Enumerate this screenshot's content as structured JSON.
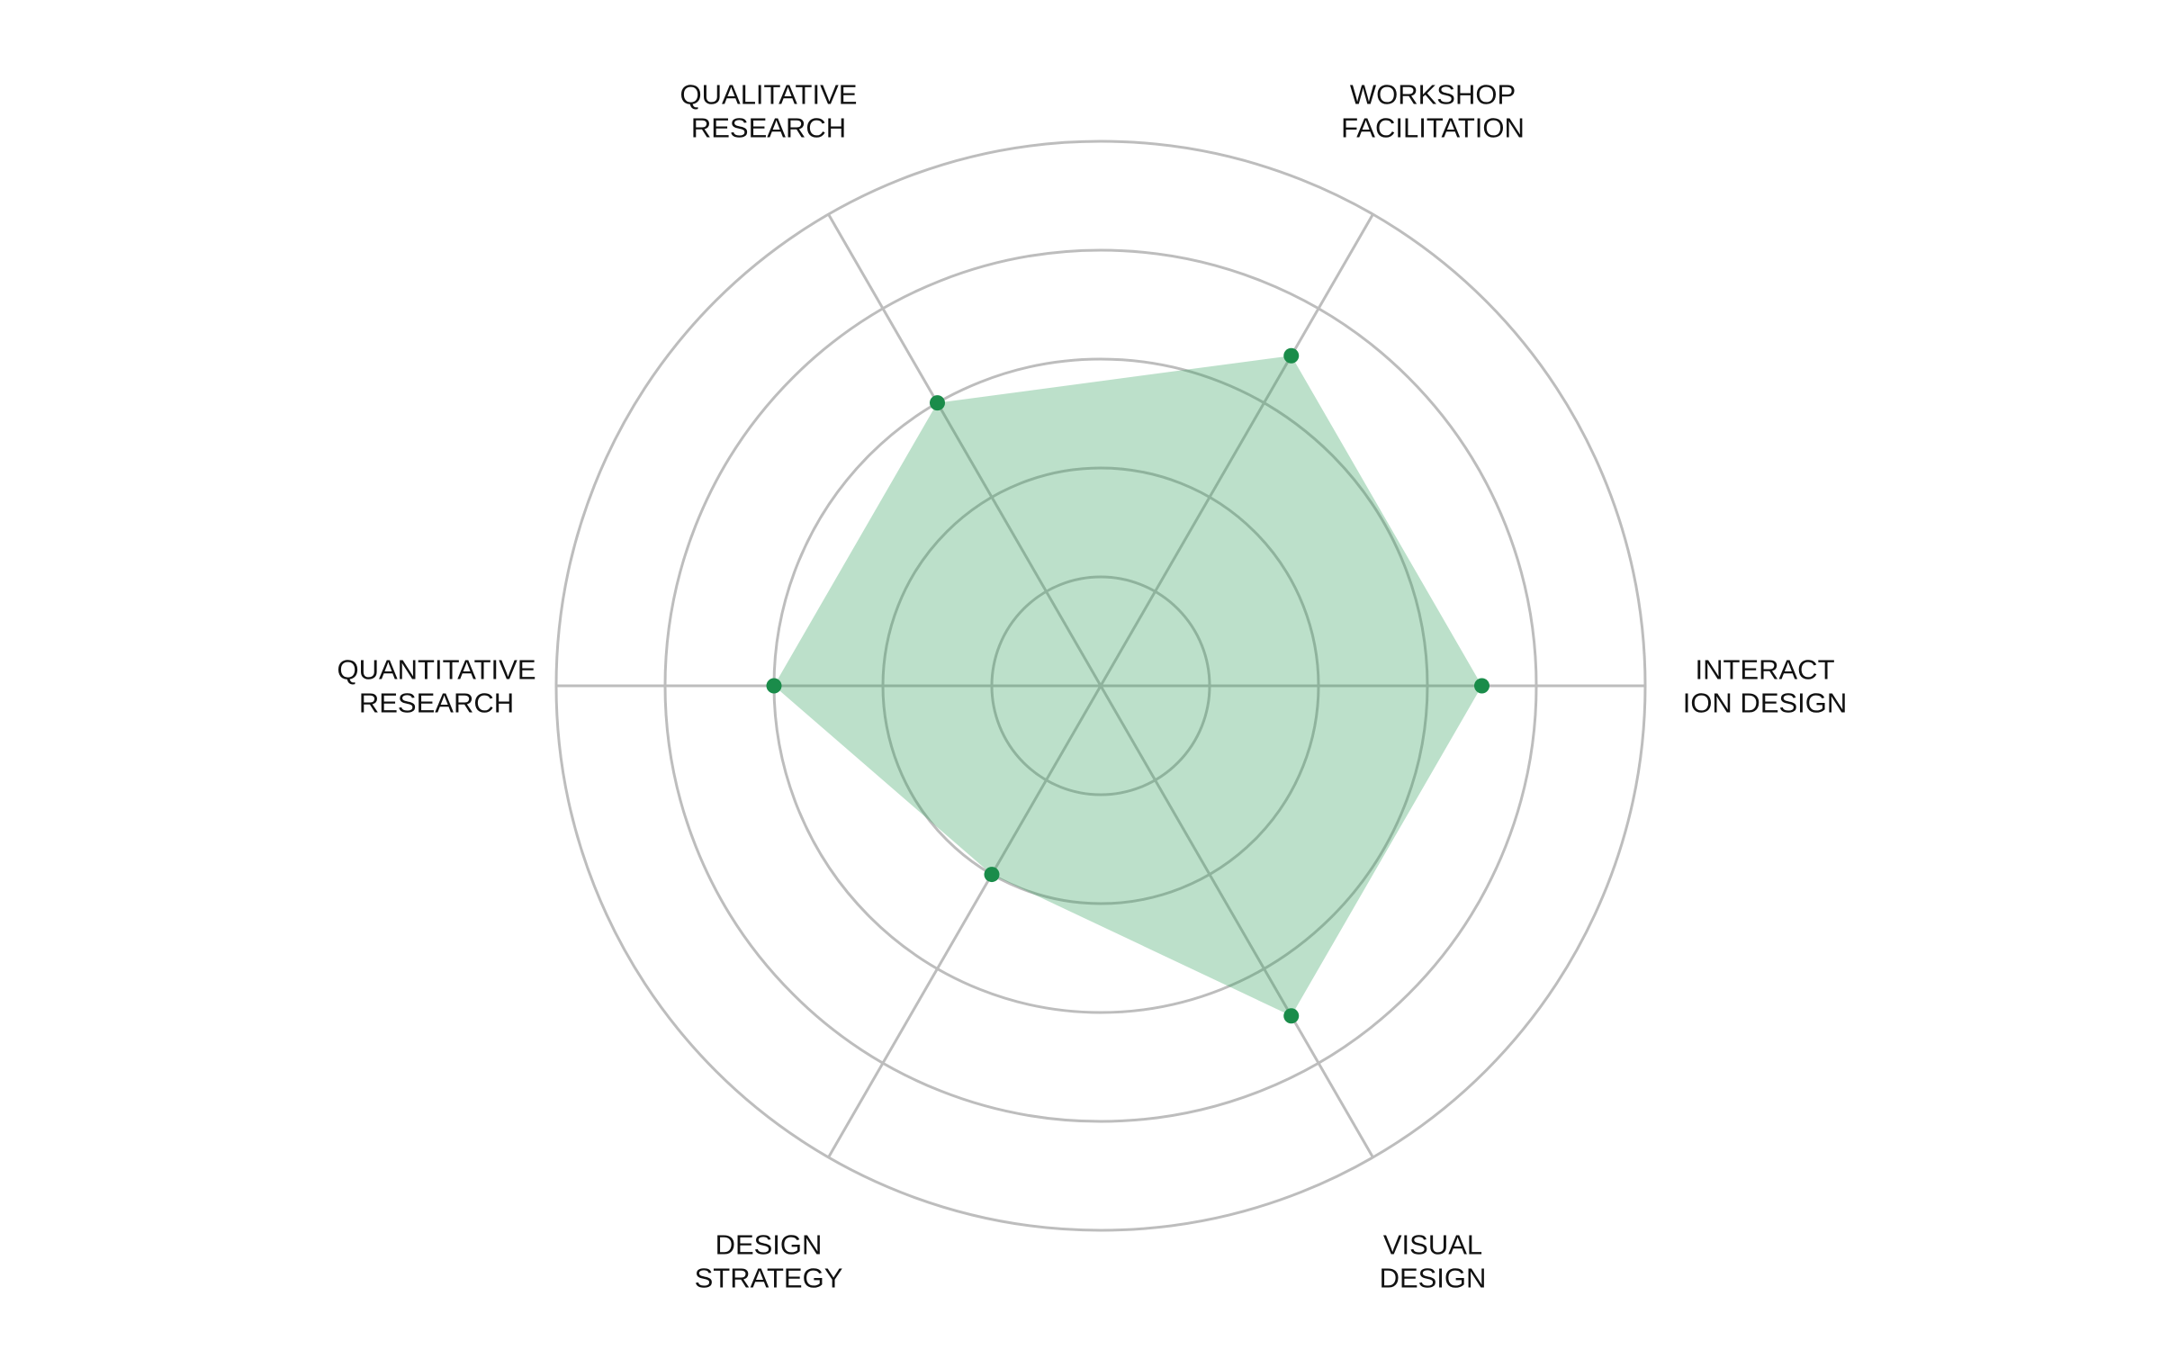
{
  "chart_data": {
    "type": "radar",
    "axes": [
      {
        "label_lines": [
          "INTERACT",
          "ION DESIGN"
        ],
        "value": 3.5
      },
      {
        "label_lines": [
          "WORKSHOP",
          "FACILITATION"
        ],
        "value": 3.5
      },
      {
        "label_lines": [
          "QUALITATIVE",
          "RESEARCH"
        ],
        "value": 3.0
      },
      {
        "label_lines": [
          "QUANTITATIVE",
          "RESEARCH"
        ],
        "value": 3.0
      },
      {
        "label_lines": [
          "DESIGN",
          "STRATEGY"
        ],
        "value": 2.0
      },
      {
        "label_lines": [
          "VISUAL",
          "DESIGN"
        ],
        "value": 3.5
      }
    ],
    "rmax": 5,
    "rings": [
      1,
      2,
      3,
      4,
      5
    ],
    "grid": true,
    "legend": "none",
    "colors": {
      "fill": "#2e9e5b",
      "point": "#1a8c4a",
      "grid": "#bdbdbd",
      "text": "#111111"
    }
  }
}
